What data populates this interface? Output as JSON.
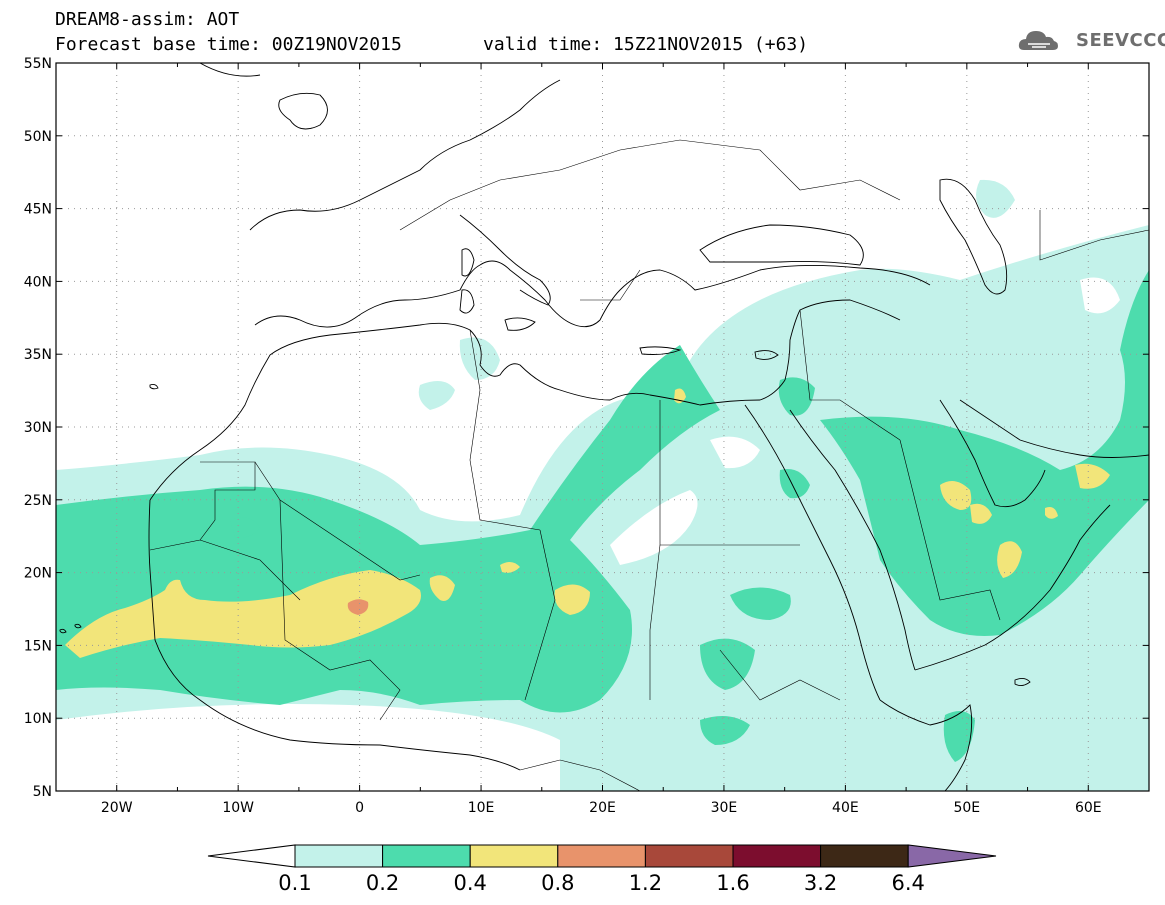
{
  "header": {
    "title": "DREAM8-assim: AOT",
    "base_time": "Forecast base time: 00Z19NOV2015",
    "valid_time": "valid time: 15Z21NOV2015 (+63)"
  },
  "logo": {
    "text": "SEEVCCC",
    "icon": "cloud-icon"
  },
  "map": {
    "lat_labels": [
      "55N",
      "50N",
      "45N",
      "40N",
      "35N",
      "30N",
      "25N",
      "20N",
      "15N",
      "10N",
      "5N"
    ],
    "lon_labels": [
      "20W",
      "10W",
      "0",
      "10E",
      "20E",
      "30E",
      "40E",
      "50E",
      "60E"
    ],
    "lat_range": [
      5,
      55
    ],
    "lon_range": [
      -25,
      65
    ],
    "grid": "dotted"
  },
  "colorbar": {
    "levels": [
      "0.1",
      "0.2",
      "0.4",
      "0.8",
      "1.2",
      "1.6",
      "3.2",
      "6.4"
    ],
    "colors": [
      "#ffffff",
      "#c3f2ea",
      "#4ddcad",
      "#f2e57a",
      "#e8936b",
      "#a8483a",
      "#7c0d2e",
      "#3d2816",
      "#8968a7"
    ]
  },
  "palette": {
    "aot_01_02": "#c3f2ea",
    "aot_02_04": "#4ddcad",
    "aot_04_08": "#f2e57a",
    "aot_08_12": "#e8936b"
  }
}
